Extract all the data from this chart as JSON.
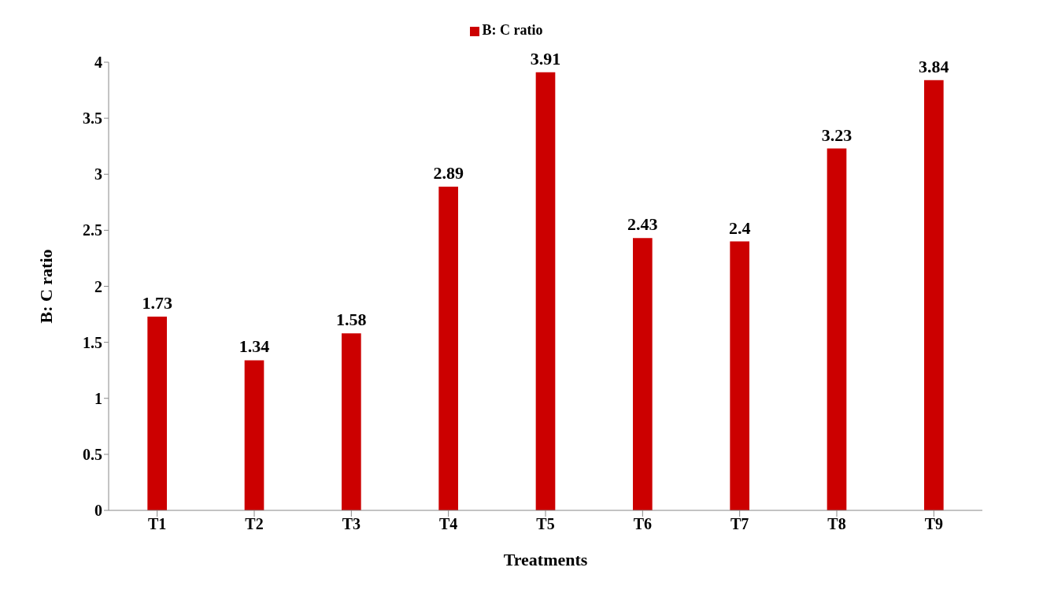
{
  "chart_data": {
    "type": "bar",
    "xlabel": "Treatments",
    "ylabel": "B: C ratio",
    "categories": [
      "T1",
      "T2",
      "T3",
      "T4",
      "T5",
      "T6",
      "T7",
      "T8",
      "T9"
    ],
    "series": [
      {
        "name": "B: C ratio",
        "color": "#cc0000",
        "values": [
          1.73,
          1.34,
          1.58,
          2.89,
          3.91,
          2.43,
          2.4,
          3.23,
          3.84
        ]
      }
    ],
    "ylim": [
      0,
      4
    ],
    "yticks": [
      0,
      0.5,
      1,
      1.5,
      2,
      2.5,
      3,
      3.5,
      4
    ],
    "grid": false,
    "legend": "top",
    "data_labels": true
  }
}
